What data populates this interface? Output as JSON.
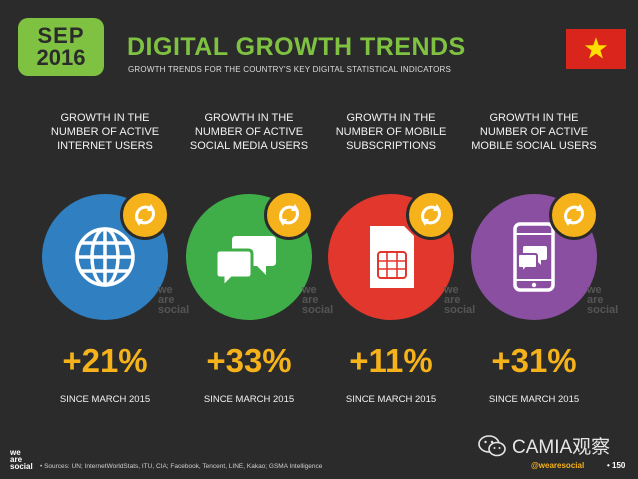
{
  "header": {
    "month": "SEP",
    "year": "2016",
    "title": "DIGITAL GROWTH TRENDS",
    "subtitle": "GROWTH TRENDS FOR THE COUNTRY'S KEY DIGITAL STATISTICAL INDICATORS"
  },
  "colors": {
    "green": "#7fc242",
    "gold": "#f5b21b",
    "blue": "#2f7fc1",
    "social_green": "#3fae49",
    "red": "#e2372c",
    "purple": "#8a4fa0",
    "background": "#2b2b2b"
  },
  "indicators": [
    {
      "label_lines": [
        "GROWTH IN THE",
        "NUMBER OF ACTIVE",
        "INTERNET USERS"
      ],
      "value": "+21%",
      "since": "SINCE MARCH 2015",
      "icon": "globe-icon"
    },
    {
      "label_lines": [
        "GROWTH IN THE",
        "NUMBER OF ACTIVE",
        "SOCIAL MEDIA USERS"
      ],
      "value": "+33%",
      "since": "SINCE MARCH 2015",
      "icon": "chat-bubbles-icon"
    },
    {
      "label_lines": [
        "GROWTH IN THE",
        "NUMBER OF MOBILE",
        "SUBSCRIPTIONS"
      ],
      "value": "+11%",
      "since": "SINCE MARCH 2015",
      "icon": "sim-card-icon"
    },
    {
      "label_lines": [
        "GROWTH IN THE",
        "NUMBER OF ACTIVE",
        "MOBILE SOCIAL USERS"
      ],
      "value": "+31%",
      "since": "SINCE MARCH 2015",
      "icon": "mobile-chat-icon"
    }
  ],
  "brand_mark": [
    "we",
    "are",
    "social"
  ],
  "footer": {
    "sources": "• Sources: UN; InternetWorldStats, ITU, CIA; Facebook, Tencent, LINE, Kakao; GSMA Intelligence",
    "handle": "@wearesocial",
    "page": "• 150"
  },
  "watermark": "CAMIA观察"
}
